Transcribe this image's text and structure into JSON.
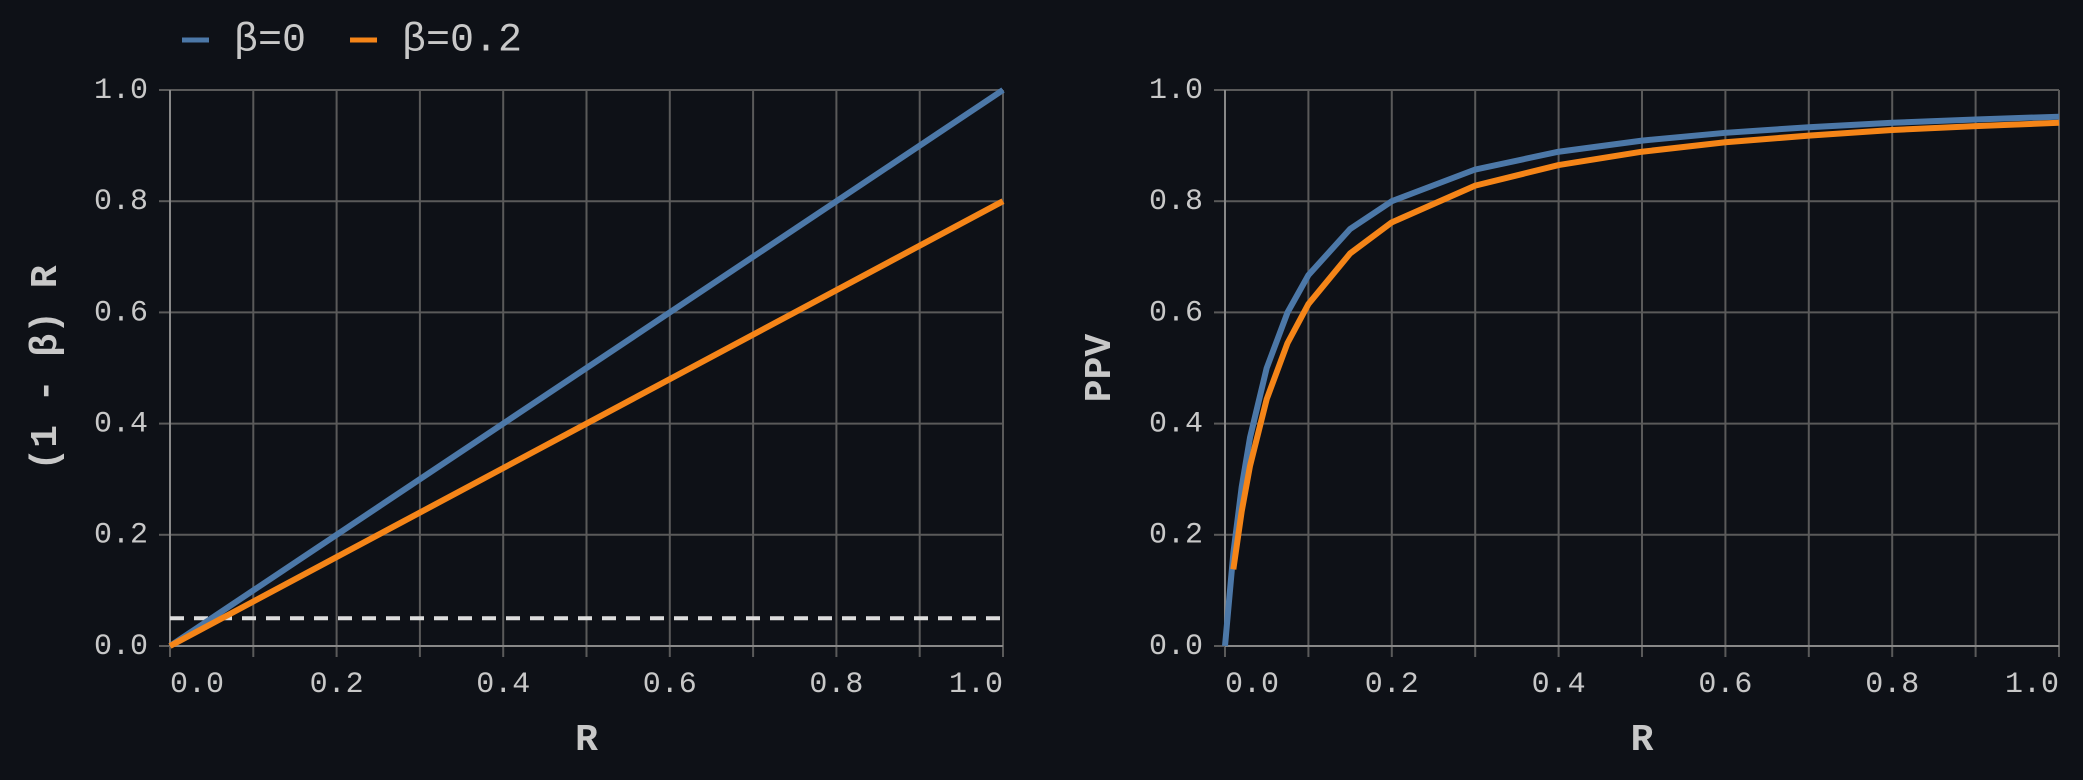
{
  "chart_data": [
    {
      "type": "line",
      "legend": "top",
      "xlabel": "R",
      "ylabel": "(1 - β) R",
      "x": [
        0,
        1
      ],
      "series": [
        {
          "name": "β=0",
          "color": "#4c78a8",
          "values": [
            0,
            1
          ]
        },
        {
          "name": "β=0.2",
          "color": "#f58518",
          "values": [
            0,
            0.8
          ]
        }
      ],
      "hline": {
        "value": 0.05,
        "color": "#dddddd",
        "dash": true
      },
      "xlim": [
        0,
        1
      ],
      "ylim": [
        0,
        1
      ],
      "xticks": [
        {
          "value": 0,
          "label": "0.0"
        },
        {
          "value": 0.2,
          "label": "0.2"
        },
        {
          "value": 0.4,
          "label": "0.4"
        },
        {
          "value": 0.6,
          "label": "0.6"
        },
        {
          "value": 0.8,
          "label": "0.8"
        },
        {
          "value": 1,
          "label": "1.0"
        }
      ],
      "xminor": [
        0.1,
        0.3,
        0.5,
        0.7,
        0.9
      ],
      "yticks": [
        {
          "value": 0,
          "label": "0.0"
        },
        {
          "value": 0.2,
          "label": "0.2"
        },
        {
          "value": 0.4,
          "label": "0.4"
        },
        {
          "value": 0.6,
          "label": "0.6"
        },
        {
          "value": 0.8,
          "label": "0.8"
        },
        {
          "value": 1,
          "label": "1.0"
        }
      ],
      "grid": true
    },
    {
      "type": "line",
      "xlabel": "R",
      "ylabel": "PPV",
      "x": [
        0,
        0.01,
        0.02,
        0.03,
        0.05,
        0.075,
        0.1,
        0.15,
        0.2,
        0.3,
        0.4,
        0.5,
        0.6,
        0.7,
        0.8,
        0.9,
        1
      ],
      "series": [
        {
          "color": "#4c78a8",
          "values": [
            0,
            0.167,
            0.286,
            0.375,
            0.5,
            0.6,
            0.667,
            0.75,
            0.8,
            0.857,
            0.889,
            0.909,
            0.923,
            0.933,
            0.941,
            0.947,
            0.952
          ]
        },
        {
          "color": "#f58518",
          "values": [
            null,
            0.138,
            0.242,
            0.324,
            0.444,
            0.545,
            0.615,
            0.706,
            0.762,
            0.828,
            0.865,
            0.889,
            0.906,
            0.918,
            0.928,
            0.935,
            0.941
          ]
        }
      ],
      "xlim": [
        0,
        1
      ],
      "ylim": [
        0,
        1
      ],
      "xticks": [
        {
          "value": 0,
          "label": "0.0"
        },
        {
          "value": 0.2,
          "label": "0.2"
        },
        {
          "value": 0.4,
          "label": "0.4"
        },
        {
          "value": 0.6,
          "label": "0.6"
        },
        {
          "value": 0.8,
          "label": "0.8"
        },
        {
          "value": 1,
          "label": "1.0"
        }
      ],
      "xminor": [
        0.1,
        0.3,
        0.5,
        0.7,
        0.9
      ],
      "yticks": [
        {
          "value": 0,
          "label": "0.0"
        },
        {
          "value": 0.2,
          "label": "0.2"
        },
        {
          "value": 0.4,
          "label": "0.4"
        },
        {
          "value": 0.6,
          "label": "0.6"
        },
        {
          "value": 0.8,
          "label": "0.8"
        },
        {
          "value": 1,
          "label": "1.0"
        }
      ],
      "grid": true
    }
  ]
}
